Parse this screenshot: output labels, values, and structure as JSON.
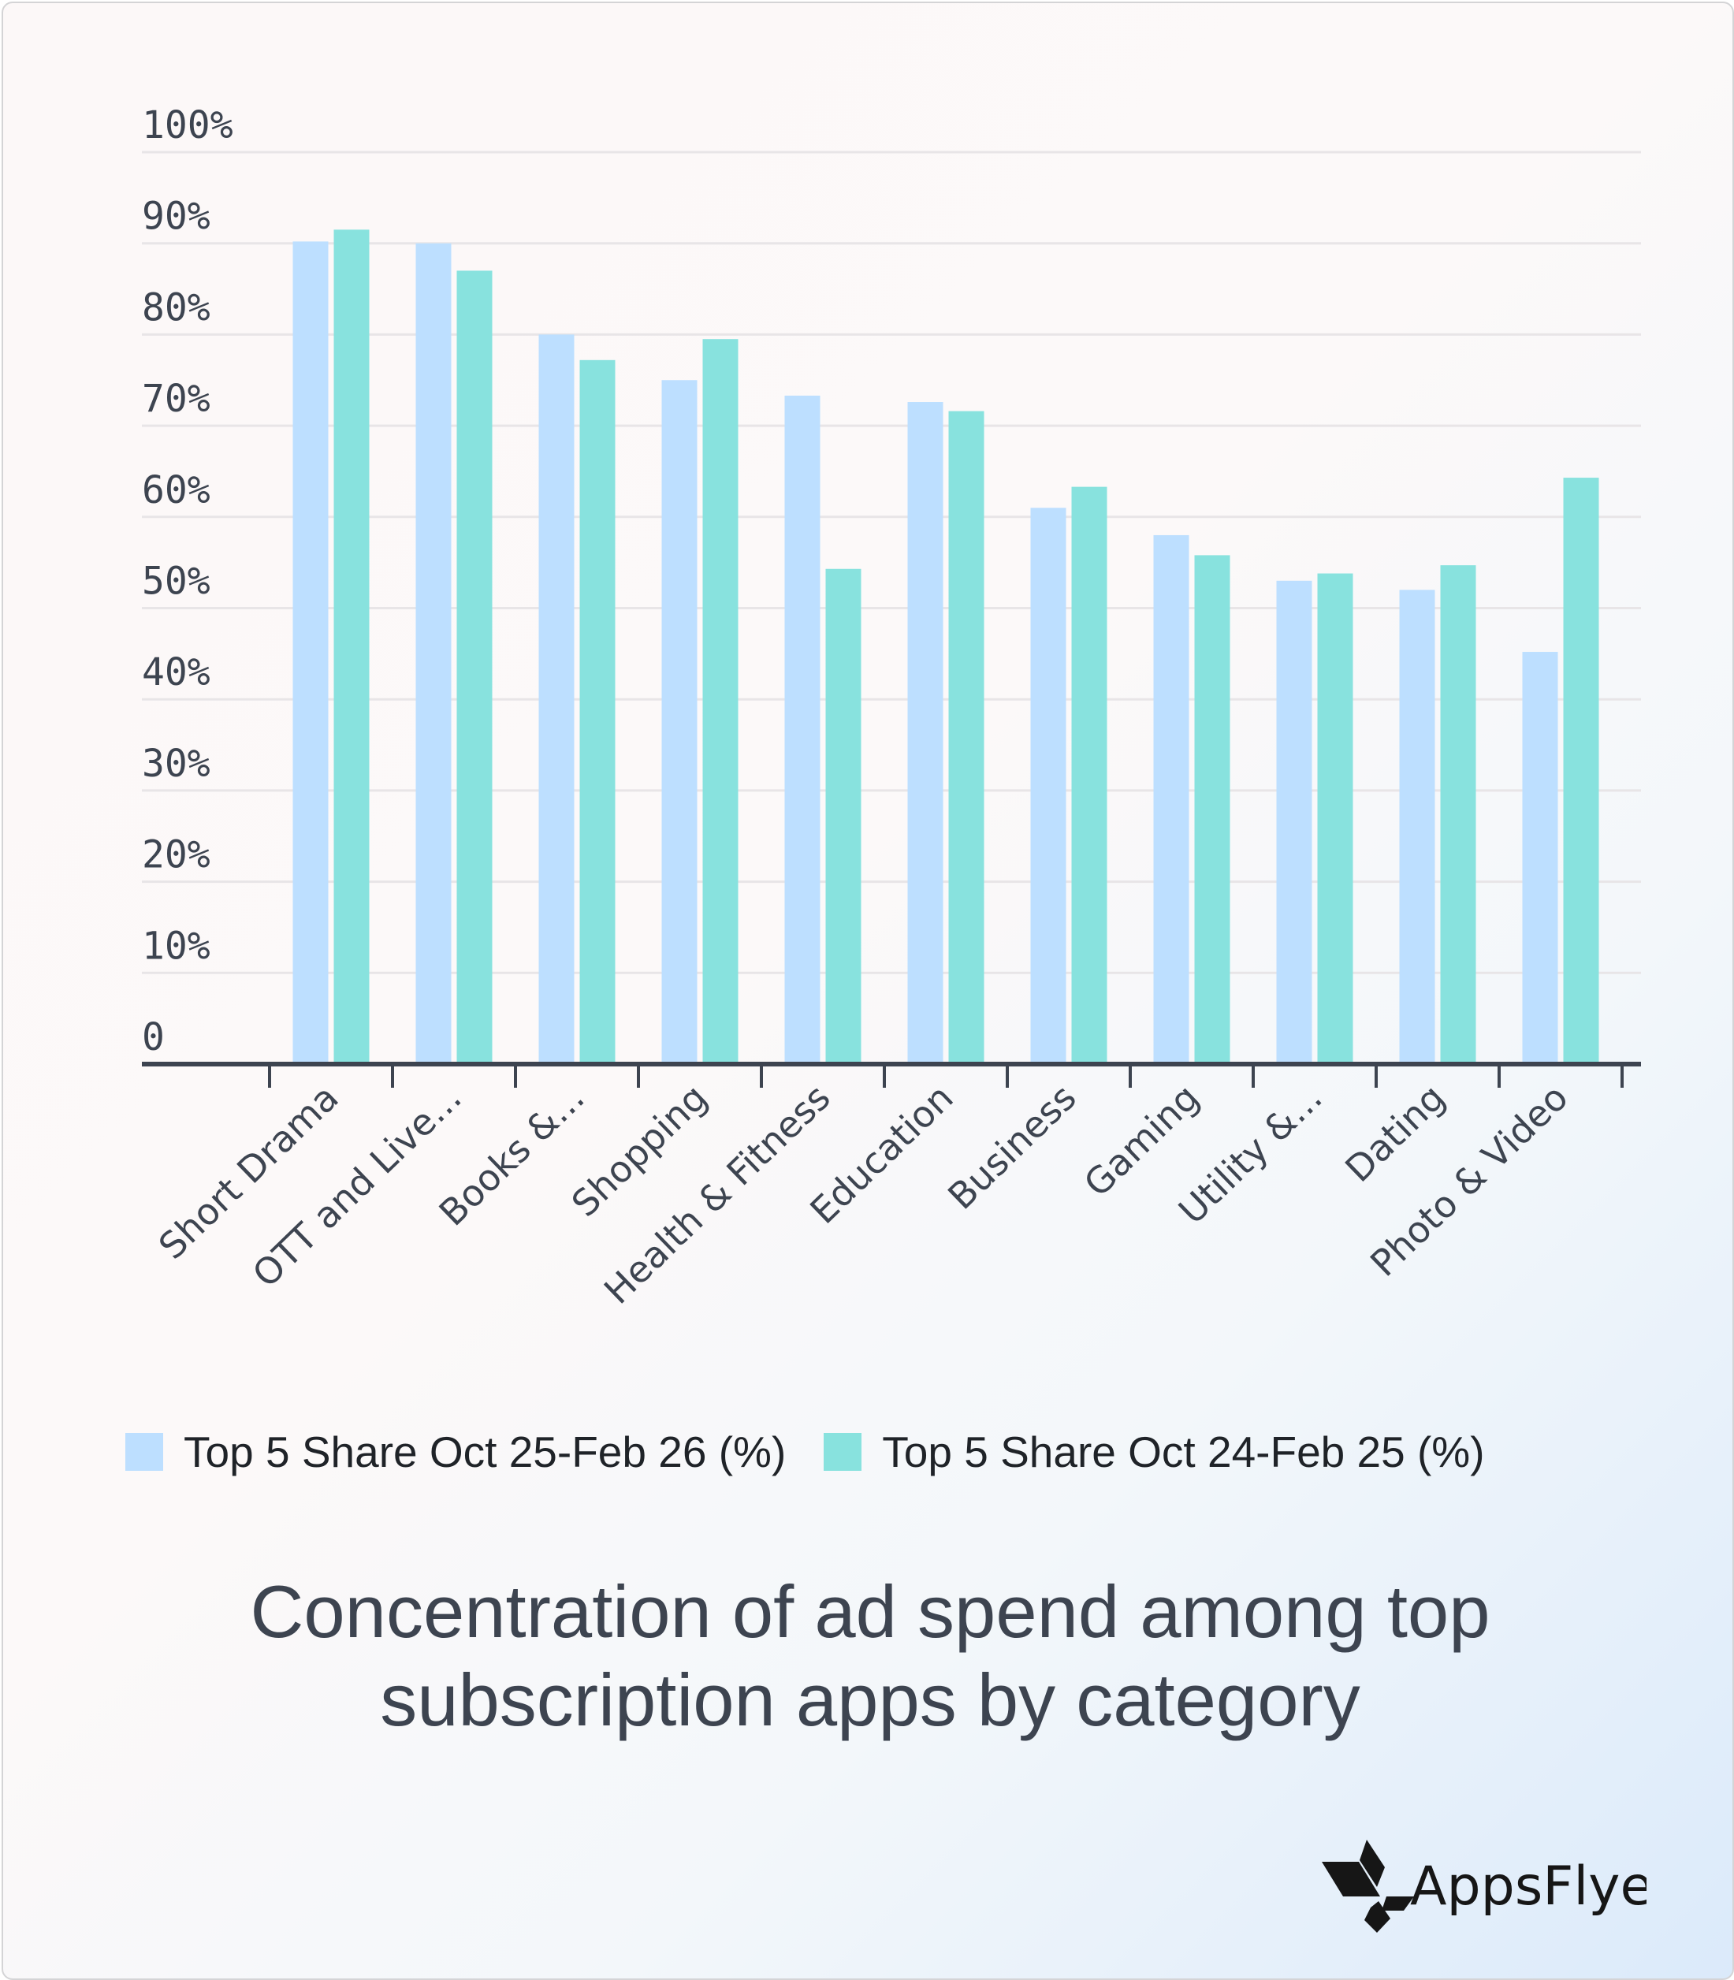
{
  "chart_data": {
    "type": "bar",
    "title": "Concentration of ad spend among top subscription apps by category",
    "categories": [
      "Short Drama",
      "OTT and Live...",
      "Books &...",
      "Shopping",
      "Health & Fitness",
      "Education",
      "Business",
      "Gaming",
      "Utility &...",
      "Dating",
      "Photo & Video"
    ],
    "series": [
      {
        "name": "Top 5 Share Oct 25-Feb 26 (%)",
        "color": "#bddfff",
        "values": [
          90.2,
          90,
          80,
          75,
          73.3,
          72.6,
          61,
          58,
          53,
          52,
          45.2
        ]
      },
      {
        "name": "Top 5 Share Oct 24-Feb 25 (%)",
        "color": "#88e2de",
        "values": [
          91.5,
          87,
          77.2,
          79.5,
          54.3,
          71.6,
          63.3,
          55.8,
          53.8,
          54.7,
          64.3
        ]
      }
    ],
    "yticks": [
      "0",
      "10%",
      "20%",
      "30%",
      "40%",
      "50%",
      "60%",
      "70%",
      "80%",
      "90%",
      "100%"
    ],
    "ylim": [
      0,
      100
    ],
    "grid": true,
    "legend_position": "bottom"
  },
  "title_lines": [
    "Concentration of ad spend among top",
    "subscription apps by category"
  ],
  "logo_text": "AppsFlyer"
}
